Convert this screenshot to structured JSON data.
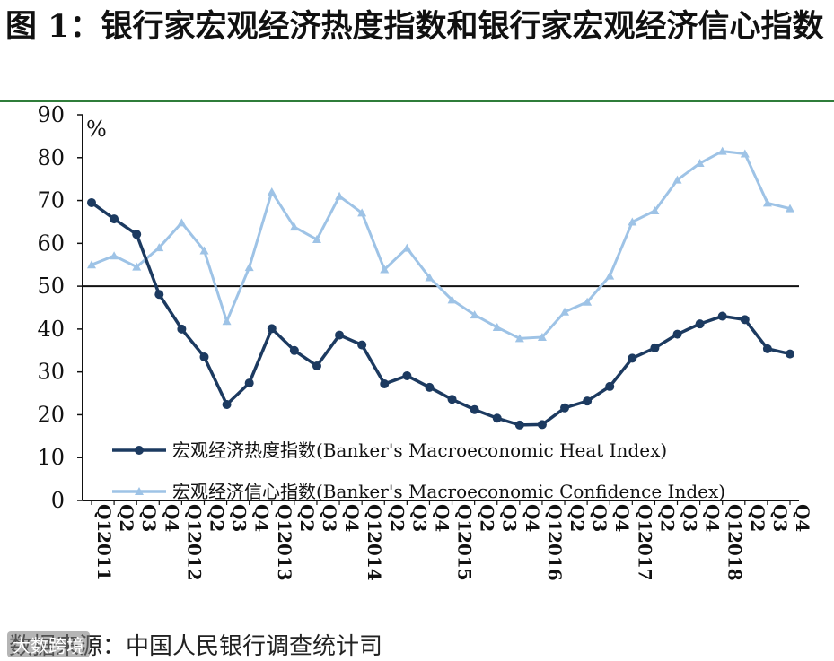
{
  "figure": {
    "title": "图 1：银行家宏观经济热度指数和银行家宏观经济信心指数",
    "source": "数据来源：中国人民银行调查统计司",
    "watermark": "大数跨境"
  },
  "colors": {
    "heat": "#1c3a60",
    "confidence": "#9ec3e6",
    "rule": "#2f7d3a"
  },
  "chart_data": {
    "type": "line",
    "unit_label": "%",
    "ylim": [
      0,
      90
    ],
    "yticks": [
      0,
      10,
      20,
      30,
      40,
      50,
      60,
      70,
      80,
      90
    ],
    "reference_line": 50,
    "x": [
      "2011.Q1",
      "Q2",
      "Q3",
      "Q4",
      "2012.Q1",
      "Q2",
      "Q3",
      "Q4",
      "2013.Q1",
      "Q2",
      "Q3",
      "Q4",
      "2014.Q1",
      "Q2",
      "Q3",
      "Q4",
      "2015.Q1",
      "Q2",
      "Q3",
      "Q4",
      "2016.Q1",
      "Q2",
      "Q3",
      "Q4",
      "2017.Q1",
      "Q2",
      "Q3",
      "Q4",
      "2018.Q1",
      "Q2",
      "Q3",
      "Q4"
    ],
    "x_labels": [
      {
        "quarter": "Q1",
        "year": "2011"
      },
      {
        "quarter": "Q2",
        "year": ""
      },
      {
        "quarter": "Q3",
        "year": ""
      },
      {
        "quarter": "Q4",
        "year": ""
      },
      {
        "quarter": "Q1",
        "year": "2012"
      },
      {
        "quarter": "Q2",
        "year": ""
      },
      {
        "quarter": "Q3",
        "year": ""
      },
      {
        "quarter": "Q4",
        "year": ""
      },
      {
        "quarter": "Q1",
        "year": "2013"
      },
      {
        "quarter": "Q2",
        "year": ""
      },
      {
        "quarter": "Q3",
        "year": ""
      },
      {
        "quarter": "Q4",
        "year": ""
      },
      {
        "quarter": "Q1",
        "year": "2014"
      },
      {
        "quarter": "Q2",
        "year": ""
      },
      {
        "quarter": "Q3",
        "year": ""
      },
      {
        "quarter": "Q4",
        "year": ""
      },
      {
        "quarter": "Q1",
        "year": "2015"
      },
      {
        "quarter": "Q2",
        "year": ""
      },
      {
        "quarter": "Q3",
        "year": ""
      },
      {
        "quarter": "Q4",
        "year": ""
      },
      {
        "quarter": "Q1",
        "year": "2016"
      },
      {
        "quarter": "Q2",
        "year": ""
      },
      {
        "quarter": "Q3",
        "year": ""
      },
      {
        "quarter": "Q4",
        "year": ""
      },
      {
        "quarter": "Q1",
        "year": "2017"
      },
      {
        "quarter": "Q2",
        "year": ""
      },
      {
        "quarter": "Q3",
        "year": ""
      },
      {
        "quarter": "Q4",
        "year": ""
      },
      {
        "quarter": "Q1",
        "year": "2018"
      },
      {
        "quarter": "Q2",
        "year": ""
      },
      {
        "quarter": "Q3",
        "year": ""
      },
      {
        "quarter": "Q4",
        "year": ""
      }
    ],
    "series": [
      {
        "name": "宏观经济热度指数(Banker's Macroeconomic Heat Index)",
        "color": "#1c3a60",
        "marker": "circle",
        "values": [
          69.5,
          65.7,
          62.1,
          48.1,
          40.0,
          33.5,
          22.4,
          27.4,
          40.1,
          35.0,
          31.4,
          38.6,
          36.3,
          27.2,
          29.1,
          26.4,
          23.6,
          21.2,
          19.2,
          17.6,
          17.7,
          21.6,
          23.2,
          26.6,
          33.2,
          35.6,
          38.8,
          41.2,
          43.0,
          42.2,
          35.4,
          34.2
        ]
      },
      {
        "name": "宏观经济信心指数(Banker's Macroeconomic Confidence Index)",
        "color": "#9ec3e6",
        "marker": "triangle",
        "values": [
          55.0,
          57.1,
          54.5,
          59.0,
          64.8,
          58.3,
          41.8,
          54.4,
          72.0,
          63.8,
          60.9,
          71.0,
          67.1,
          53.9,
          58.9,
          52.0,
          46.8,
          43.3,
          40.4,
          37.8,
          38.1,
          44.0,
          46.3,
          52.4,
          65.0,
          67.6,
          74.8,
          78.7,
          81.5,
          80.9,
          69.4,
          68.1
        ]
      }
    ],
    "legend_position": "lower-left inside"
  }
}
